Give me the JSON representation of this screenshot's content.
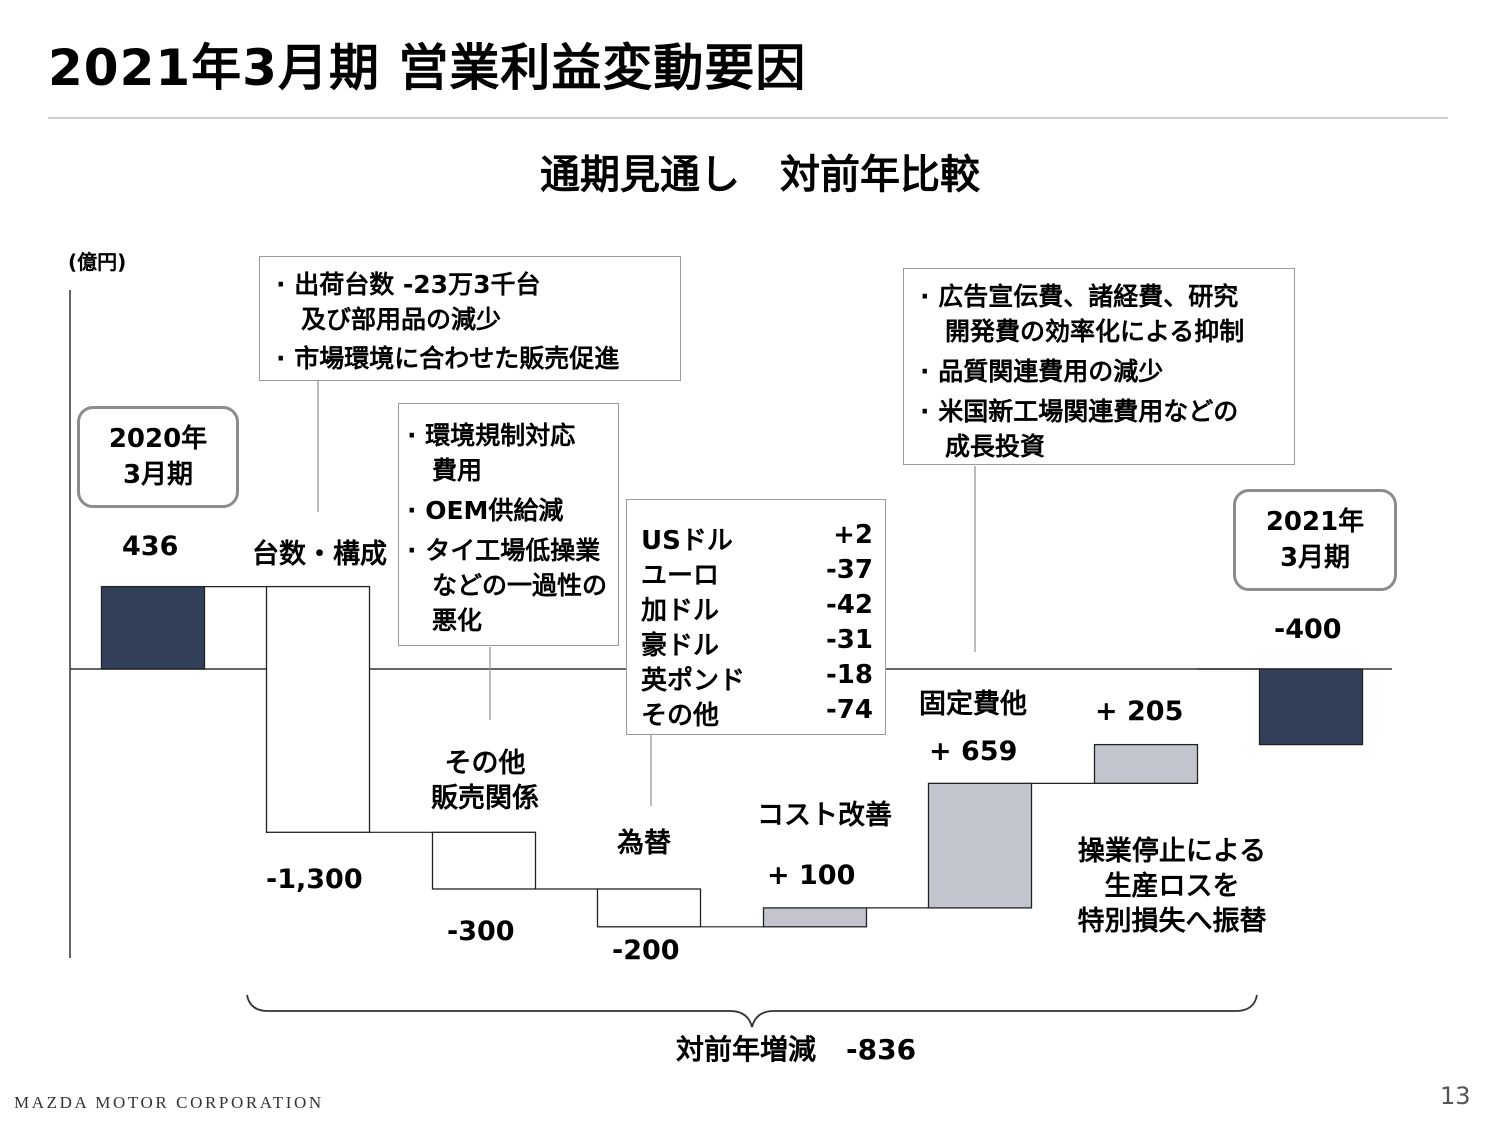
{
  "title": "2021年3月期 営業利益変動要因",
  "subtitle": "通期見通し　対前年比較",
  "unit": "(億円)",
  "footer": {
    "company": "MAZDA MOTOR CORPORATION",
    "page": "13"
  },
  "colors": {
    "endpoint_bar": "#323f58",
    "increase_bar": "#c2c5ce",
    "decrease_bar": "#ffffff",
    "bar_stroke": "#222222"
  },
  "chart_data": {
    "type": "waterfall",
    "categories": [
      "2020年3月期",
      "台数・構成",
      "その他販売関係",
      "為替",
      "コスト改善",
      "固定費他",
      "操業停止による生産ロスを特別損失へ振替",
      "2021年3月期"
    ],
    "values": [
      436,
      -1300,
      -300,
      -200,
      100,
      659,
      205,
      -400
    ],
    "value_labels": [
      "436",
      "-1,300",
      "-300",
      "-200",
      "+ 100",
      "+ 659",
      "+ 205",
      "-400"
    ],
    "kinds": [
      "total",
      "delta",
      "delta",
      "delta",
      "delta",
      "delta",
      "delta",
      "total"
    ],
    "ylim": [
      -1550,
      530
    ],
    "grid": false,
    "total_change": {
      "label": "対前年増減",
      "value": "-836"
    }
  },
  "labels": {
    "start_period": [
      "2020年",
      "3月期"
    ],
    "end_period": [
      "2021年",
      "3月期"
    ],
    "volume_mix": "台数・構成",
    "other_sales": [
      "その他",
      "販売関係"
    ],
    "fx": "為替",
    "cost": "コスト改善",
    "fixed": "固定費他",
    "transfer": [
      "操業停止による",
      "生産ロスを",
      "特別損失へ振替"
    ]
  },
  "notes": {
    "volume": [
      "· 出荷台数 -23万3千台",
      "　及び部用品の減少",
      "· 市場環境に合わせた販売促進"
    ],
    "other_sales": [
      "· 環境規制対応",
      "　費用",
      "· OEM供給減",
      "· タイ工場低操業",
      "　などの一過性の",
      "　悪化"
    ],
    "fixed": [
      "· 広告宣伝費、諸経費、研究",
      "　開発費の効率化による抑制",
      "· 品質関連費用の減少",
      "· 米国新工場関連費用などの",
      "　成長投資"
    ]
  },
  "fx_breakdown": [
    {
      "currency": "USドル",
      "value": "+2"
    },
    {
      "currency": "ユーロ",
      "value": "-37"
    },
    {
      "currency": "加ドル",
      "value": "-42"
    },
    {
      "currency": "豪ドル",
      "value": "-31"
    },
    {
      "currency": "英ポンド",
      "value": "-18"
    },
    {
      "currency": "その他",
      "value": "-74"
    }
  ]
}
